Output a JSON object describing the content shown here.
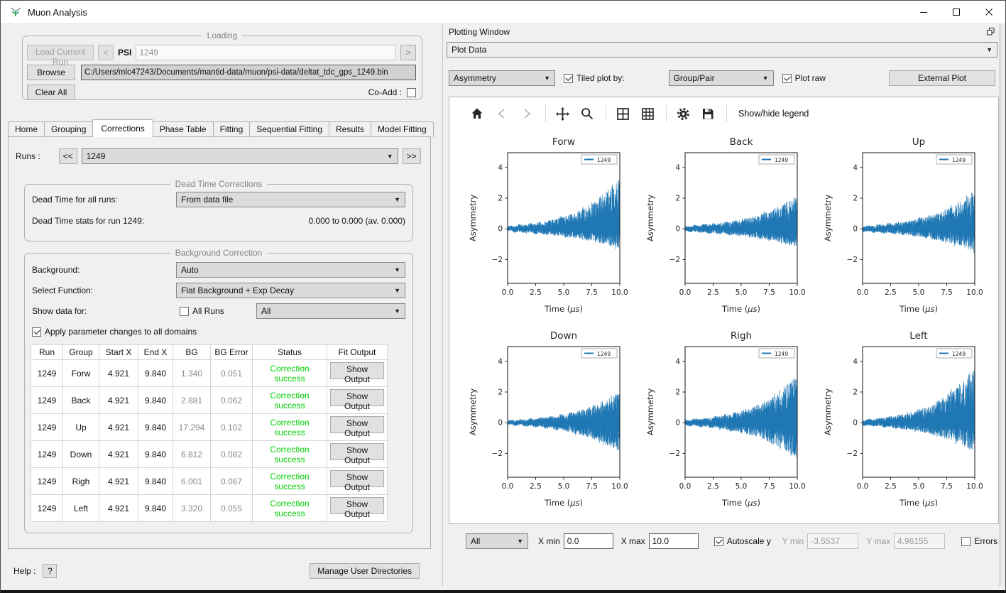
{
  "window": {
    "title": "Muon Analysis"
  },
  "loading": {
    "legend": "Loading",
    "load_current_run": "Load Current Run",
    "prev": "<",
    "psi_label": "PSI",
    "run_input": "1249",
    "next": ">",
    "browse": "Browse",
    "file_path": "C:/Users/mlc47243/Documents/mantid-data/muon/psi-data/deltat_tdc_gps_1249.bin",
    "clear_all": "Clear All",
    "coadd_label": "Co-Add :",
    "coadd_checked": false
  },
  "tabs": {
    "items": [
      "Home",
      "Grouping",
      "Corrections",
      "Phase Table",
      "Fitting",
      "Sequential Fitting",
      "Results",
      "Model Fitting"
    ],
    "active": "Corrections"
  },
  "runs": {
    "label": "Runs :",
    "prev": "<<",
    "value": "1249",
    "next": ">>"
  },
  "dead_time": {
    "legend": "Dead Time Corrections",
    "row1_label": "Dead Time for all runs:",
    "row1_value": "From data file",
    "row2_label": "Dead Time stats for run 1249:",
    "row2_value": "0.000 to 0.000 (av. 0.000)"
  },
  "background": {
    "legend": "Background Correction",
    "background_label": "Background:",
    "background_value": "Auto",
    "function_label": "Select Function:",
    "function_value": "Flat Background + Exp Decay",
    "show_label": "Show data for:",
    "all_runs_label": "All Runs",
    "all_runs_checked": false,
    "show_value": "All",
    "apply_label": "Apply parameter changes to all domains",
    "apply_checked": true
  },
  "corrections_table": {
    "headers": [
      "Run",
      "Group",
      "Start X",
      "End X",
      "BG",
      "BG Error",
      "Status",
      "Fit Output"
    ],
    "status_color": "#00cc00",
    "rows": [
      {
        "run": "1249",
        "group": "Forw",
        "start_x": "4.921",
        "end_x": "9.840",
        "bg": "1.340",
        "bg_error": "0.051",
        "status": "Correction success",
        "fit_output": "Show Output"
      },
      {
        "run": "1249",
        "group": "Back",
        "start_x": "4.921",
        "end_x": "9.840",
        "bg": "2.881",
        "bg_error": "0.062",
        "status": "Correction success",
        "fit_output": "Show Output"
      },
      {
        "run": "1249",
        "group": "Up",
        "start_x": "4.921",
        "end_x": "9.840",
        "bg": "17.294",
        "bg_error": "0.102",
        "status": "Correction success",
        "fit_output": "Show Output"
      },
      {
        "run": "1249",
        "group": "Down",
        "start_x": "4.921",
        "end_x": "9.840",
        "bg": "6.812",
        "bg_error": "0.082",
        "status": "Correction success",
        "fit_output": "Show Output"
      },
      {
        "run": "1249",
        "group": "Righ",
        "start_x": "4.921",
        "end_x": "9.840",
        "bg": "6.001",
        "bg_error": "0.067",
        "status": "Correction success",
        "fit_output": "Show Output"
      },
      {
        "run": "1249",
        "group": "Left",
        "start_x": "4.921",
        "end_x": "9.840",
        "bg": "3.320",
        "bg_error": "0.055",
        "status": "Correction success",
        "fit_output": "Show Output"
      }
    ]
  },
  "help": {
    "label": "Help :",
    "button": "?",
    "manage_dirs": "Manage User Directories"
  },
  "plotting": {
    "header": "Plotting Window",
    "plot_data": "Plot Data",
    "plot_type": "Asymmetry",
    "tiled_label": "Tiled plot by:",
    "tiled_checked": true,
    "tile_by": "Group/Pair",
    "plot_raw_label": "Plot raw",
    "plot_raw_checked": true,
    "external_plot": "External Plot",
    "legend_toggle": "Show/hide legend",
    "toolbar_groups": [
      [
        "home",
        "back",
        "forward"
      ],
      [
        "pan",
        "zoom"
      ],
      [
        "tile-2x2",
        "tile-3x3"
      ],
      [
        "settings",
        "save"
      ]
    ],
    "bottom": {
      "selection": "All",
      "x_min_label": "X min",
      "x_min": "0.0",
      "x_max_label": "X max",
      "x_max": "10.0",
      "autoscale_label": "Autoscale y",
      "autoscale_checked": true,
      "y_min_label": "Y min",
      "y_min": "-3.5537",
      "y_max_label": "Y max",
      "y_max": "4.96155",
      "errors_label": "Errors",
      "errors_checked": false
    }
  },
  "chart_data": {
    "type": "line",
    "layout": "tiled-2x3",
    "xlabel": "Time (μs)",
    "ylabel": "Asymmetry",
    "xlim": [
      0.0,
      10.0
    ],
    "ylim": [
      -3.5537,
      4.96155
    ],
    "xticks": [
      0.0,
      2.5,
      5.0,
      7.5,
      10.0
    ],
    "yticks": [
      -2,
      0,
      2,
      4
    ],
    "legend": "1249",
    "line_color": "#1f77b4",
    "description": "Noisy muon asymmetry signals oscillating about 0 with exponentially growing amplitude from about ±0.2 at t=0",
    "subplots": [
      {
        "title": "Forw",
        "start": 0.19,
        "max_pos": 3.5,
        "max_neg": 1.4
      },
      {
        "title": "Back",
        "start": 0.19,
        "max_pos": 2.2,
        "max_neg": 1.2
      },
      {
        "title": "Up",
        "start": 0.19,
        "max_pos": 2.5,
        "max_neg": 1.5
      },
      {
        "title": "Down",
        "start": 0.15,
        "max_pos": 2.1,
        "max_neg": 2.0
      },
      {
        "title": "Righ",
        "start": 0.19,
        "max_pos": 3.2,
        "max_neg": 2.45
      },
      {
        "title": "Left",
        "start": 0.19,
        "max_pos": 3.9,
        "max_neg": 1.9
      }
    ]
  }
}
